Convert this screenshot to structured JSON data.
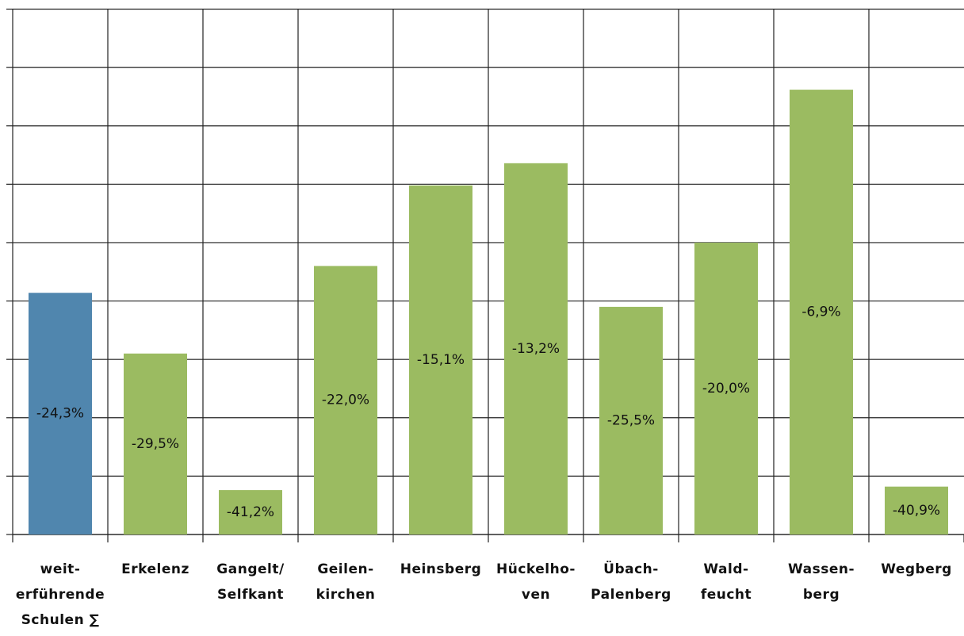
{
  "chart_data": {
    "type": "bar",
    "categories": [
      "weit-\nerführende\nSchulen ∑",
      "Erkelenz",
      "Gangelt/\nSelfkant",
      "Geilen-\nkirchen",
      "Heinsberg",
      "Hückelho-\nven",
      "Übach-\nPalenberg",
      "Wald-\nfeucht",
      "Wassen-\nberg",
      "Wegberg"
    ],
    "values": [
      -24.3,
      -29.5,
      -41.2,
      -22.0,
      -15.1,
      -13.2,
      -25.5,
      -20.0,
      -6.9,
      -40.9
    ],
    "value_labels": [
      "-24,3%",
      "-29,5%",
      "-41,2%",
      "-22,0%",
      "-15,1%",
      "-13,2%",
      "-25,5%",
      "-20,0%",
      "-6,9%",
      "-40,9%"
    ],
    "colors": [
      "#5086ae",
      "#9bbb61",
      "#9bbb61",
      "#9bbb61",
      "#9bbb61",
      "#9bbb61",
      "#9bbb61",
      "#9bbb61",
      "#9bbb61",
      "#9bbb61"
    ],
    "ylim": [
      -45,
      0
    ],
    "yticks": [
      -45,
      -40,
      -35,
      -30,
      -25,
      -20,
      -15,
      -10,
      -5,
      0
    ],
    "grid": true
  }
}
